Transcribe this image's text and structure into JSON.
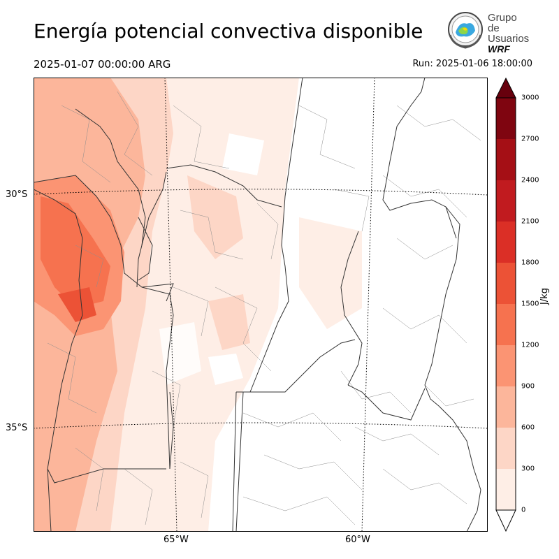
{
  "header": {
    "title": "Energía potencial convectiva disponible",
    "valid_time": "2025-01-07 00:00:00 ARG",
    "run": "Run: 2025-01-06 18:00:00"
  },
  "logo": {
    "line1": "Grupo de",
    "line2": "Usuarios",
    "line3": "WRF"
  },
  "axes": {
    "lat_labels": [
      "30°S",
      "35°S"
    ],
    "lon_labels": [
      "65°W",
      "60°W"
    ]
  },
  "colorbar": {
    "unit": "J/kg",
    "ticks": [
      "0",
      "300",
      "600",
      "900",
      "1200",
      "1500",
      "1800",
      "2100",
      "2400",
      "2700",
      "3000"
    ],
    "colors": [
      "#feeee6",
      "#fdd6c6",
      "#fcb69b",
      "#fb9473",
      "#f6724f",
      "#ec5236",
      "#db2f26",
      "#c11b1f",
      "#a50f15",
      "#7f0510"
    ],
    "extend": "both"
  }
}
